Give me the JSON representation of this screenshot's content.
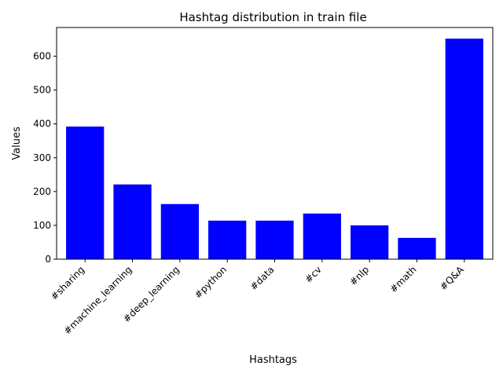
{
  "chart_data": {
    "type": "bar",
    "title": "Hashtag distribution in train file",
    "xlabel": "Hashtags",
    "ylabel": "Values",
    "categories": [
      "#sharing",
      "#machine_learning",
      "#deep_learning",
      "#python",
      "#data",
      "#cv",
      "#nlp",
      "#math",
      "#Q&A"
    ],
    "values": [
      392,
      221,
      163,
      114,
      114,
      135,
      100,
      63,
      652
    ],
    "ylim": [
      0,
      685
    ],
    "yticks": [
      0,
      100,
      200,
      300,
      400,
      500,
      600
    ],
    "ytick_labels": [
      "0",
      "100",
      "200",
      "300",
      "400",
      "500",
      "600"
    ],
    "bar_color": "#0000ff",
    "grid": false,
    "legend": false
  }
}
